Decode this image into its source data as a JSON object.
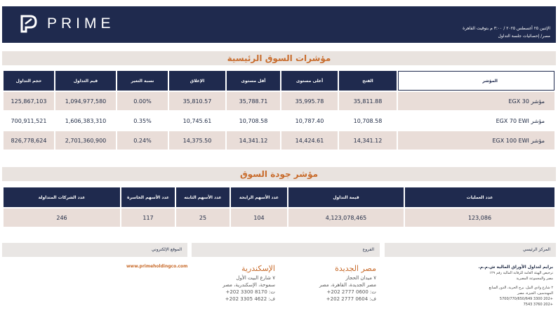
{
  "header": {
    "brand": "PRIME",
    "datetime": "الإثنين ٢٥ أغسطس ٢٠٢٥ / ٣:٠٠ م بتوقيت القاهرة",
    "subtitle": "مصر/ إحصائيات جلسة التداول",
    "colors": {
      "navy": "#1f2a4e",
      "accent": "#c86b2b",
      "neg": "#e02020",
      "pos": "#2a9a3a"
    }
  },
  "indices": {
    "title": "مؤشرات السوق الرئيسية",
    "columns": {
      "volume": "حجم التداول",
      "value": "قيم التداول",
      "change": "نسبة التغير",
      "close": "الإغلاق",
      "low": "أقل مستوى",
      "high": "أعلى مستوى",
      "open": "الفتح",
      "index": "المؤشر"
    },
    "rows": [
      {
        "name": "مؤشر EGX 30",
        "open": "35,811.88",
        "high": "35,995.78",
        "low": "35,788.71",
        "close": "35,810.57",
        "change": "0.00%",
        "value": "1,094,977,580",
        "volume": "125,867,103"
      },
      {
        "name": "مؤشر EGX 70 EWI",
        "open": "10,708.58",
        "high": "10,787.40",
        "low": "10,708.58",
        "close": "10,745.61",
        "change": "0.35%",
        "value": "1,606,383,310",
        "volume": "700,911,521"
      },
      {
        "name": "مؤشر EGX 100 EWI",
        "open": "14,341.12",
        "high": "14,424.61",
        "low": "14,341.12",
        "close": "14,375.50",
        "change": "0.24%",
        "value": "2,701,360,900",
        "volume": "826,778,624"
      }
    ]
  },
  "quality": {
    "title": "مؤشر جودة السوق",
    "columns": {
      "traded_companies": "عدد الشركات المتداولة",
      "losers": "عدد الأسهم الخاسرة",
      "unchanged": "عدد الأسهم الثابته",
      "gainers": "عدد الأسهم الرابحة",
      "traded_value": "قيمة التداول",
      "transactions": "عدد العمليات"
    },
    "values": {
      "traded_companies": "246",
      "losers": "117",
      "unchanged": "25",
      "gainers": "104",
      "traded_value": "4,123,078,465",
      "transactions": "123,086"
    }
  },
  "footer": {
    "email_label": "الموقع الإلكتروني",
    "branches_label": "الفروع",
    "hq_label": "المركز الرئيسي",
    "website": "www.primeholdingco.com",
    "branch1": {
      "city": "مصر الجديدة",
      "street": "٧ ميدان الحجاز",
      "area": "مصر الجديدة، القاهرة، مصر",
      "tel": "ت: 0600 2777 202+",
      "fax": "ف: 0604 2777 202+"
    },
    "branch2": {
      "city": "الإسكندرية",
      "street": "٧ شارع البيت الأول",
      "area": "سموحة، الإسكندرية، مصر",
      "tel": "ت: 8170 3300 202+",
      "fax": "ف: 4622 3305 202+"
    },
    "hq": {
      "name": "برايم لتداول الأوراق المالية ش.م.م.",
      "license": "ترخيص الهيئة العامة للرقابة المالية رقم ١٢٩",
      "country": "مصر والمجموعة المصرية",
      "address1": "٢ شارع وادي النيل، برج الحرية، الدور السابع",
      "address2": "المهندسين، الجيزة، مصر",
      "tel": "+202 3300 5700/770/650/649",
      "fax": "+202 3760 7543"
    }
  }
}
